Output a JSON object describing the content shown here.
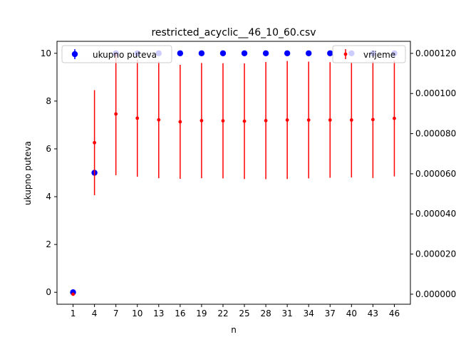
{
  "chart_data": {
    "type": "scatter",
    "title": "restricted_acyclic__46_10_60.csv",
    "xlabel": "n",
    "ylabel": "ukupno puteva",
    "y2label": "",
    "x": [
      1,
      4,
      7,
      10,
      13,
      16,
      19,
      22,
      25,
      28,
      31,
      34,
      37,
      40,
      43,
      46
    ],
    "x_tick_labels": [
      "1",
      "4",
      "7",
      "10",
      "13",
      "16",
      "19",
      "22",
      "25",
      "28",
      "31",
      "34",
      "37",
      "40",
      "43",
      "46"
    ],
    "ylim": [
      -0.5,
      10.5
    ],
    "y_ticks": [
      0,
      2,
      4,
      6,
      8,
      10
    ],
    "y_tick_labels": [
      "0",
      "2",
      "4",
      "6",
      "8",
      "10"
    ],
    "y2lim": [
      -5e-06,
      0.000126
    ],
    "y2_ticks": [
      0,
      2e-05,
      4e-05,
      6e-05,
      8e-05,
      0.0001,
      0.00012
    ],
    "y2_tick_labels": [
      "0.000000",
      "0.000020",
      "0.000040",
      "0.000060",
      "0.000080",
      "0.000100",
      "0.000120"
    ],
    "series": [
      {
        "name": "ukupno puteva",
        "axis": "left",
        "color": "#0000ff",
        "values": [
          0,
          5,
          10,
          10,
          10,
          10,
          10,
          10,
          10,
          10,
          10,
          10,
          10,
          10,
          10,
          10
        ],
        "errors": [
          0,
          0,
          0,
          0,
          0,
          0,
          0,
          0,
          0,
          0,
          0,
          0,
          0,
          0,
          0,
          0
        ]
      },
      {
        "name": "vrijeme",
        "axis": "right",
        "color": "#ff0000",
        "values": [
          0,
          7.55e-05,
          8.98e-05,
          8.77e-05,
          8.69e-05,
          8.59e-05,
          8.65e-05,
          8.64e-05,
          8.62e-05,
          8.65e-05,
          8.68e-05,
          8.68e-05,
          8.68e-05,
          8.68e-05,
          8.7e-05,
          8.76e-05
        ],
        "errors": [
          0,
          2.62e-05,
          3.05e-05,
          2.92e-05,
          2.91e-05,
          2.84e-05,
          2.87e-05,
          2.87e-05,
          2.88e-05,
          2.92e-05,
          2.94e-05,
          2.91e-05,
          2.88e-05,
          2.86e-05,
          2.91e-05,
          2.89e-05
        ]
      }
    ],
    "legends": [
      {
        "position": "upper-left",
        "series": 0
      },
      {
        "position": "upper-right",
        "series": 1
      }
    ],
    "grid": false
  }
}
